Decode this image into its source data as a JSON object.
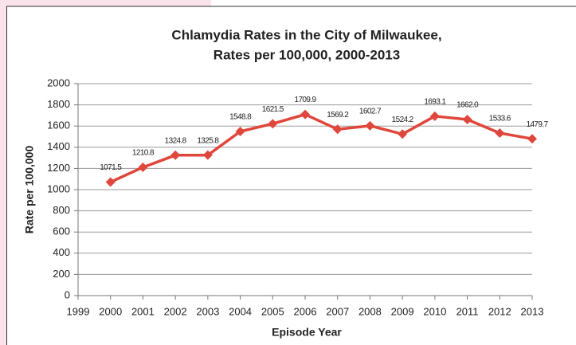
{
  "chart_data": {
    "type": "line",
    "title": "Chlamydia Rates in the City of Milwaukee,",
    "subtitle": "Rates per 100,000, 2000-2013",
    "x_label": "Episode Year",
    "y_label": "Rate per 100,000",
    "x": [
      2000,
      2001,
      2002,
      2003,
      2004,
      2005,
      2006,
      2007,
      2008,
      2009,
      2010,
      2011,
      2012,
      2013
    ],
    "values": [
      1071.5,
      1210.8,
      1324.8,
      1325.8,
      1548.8,
      1621.5,
      1709.9,
      1569.2,
      1602.7,
      1524.2,
      1693.1,
      1662.0,
      1533.6,
      1479.7
    ],
    "value_labels": [
      "1071.5",
      "1210.8",
      "1324.8",
      "1325.8",
      "1548.8",
      "1621.5",
      "1709.9",
      "1569.2",
      "1602.7",
      "1524.2",
      "1693.1",
      "1662.0",
      "1533.6",
      "1479.7"
    ],
    "color": "#e0473c",
    "xlim": [
      1999,
      2013
    ],
    "xticks": [
      1999,
      2000,
      2001,
      2002,
      2003,
      2004,
      2005,
      2006,
      2007,
      2008,
      2009,
      2010,
      2011,
      2012,
      2013
    ],
    "ylim": [
      0,
      2000
    ],
    "yticks": [
      0,
      200,
      400,
      600,
      800,
      1000,
      1200,
      1400,
      1600,
      1800,
      2000
    ],
    "grid": true
  }
}
